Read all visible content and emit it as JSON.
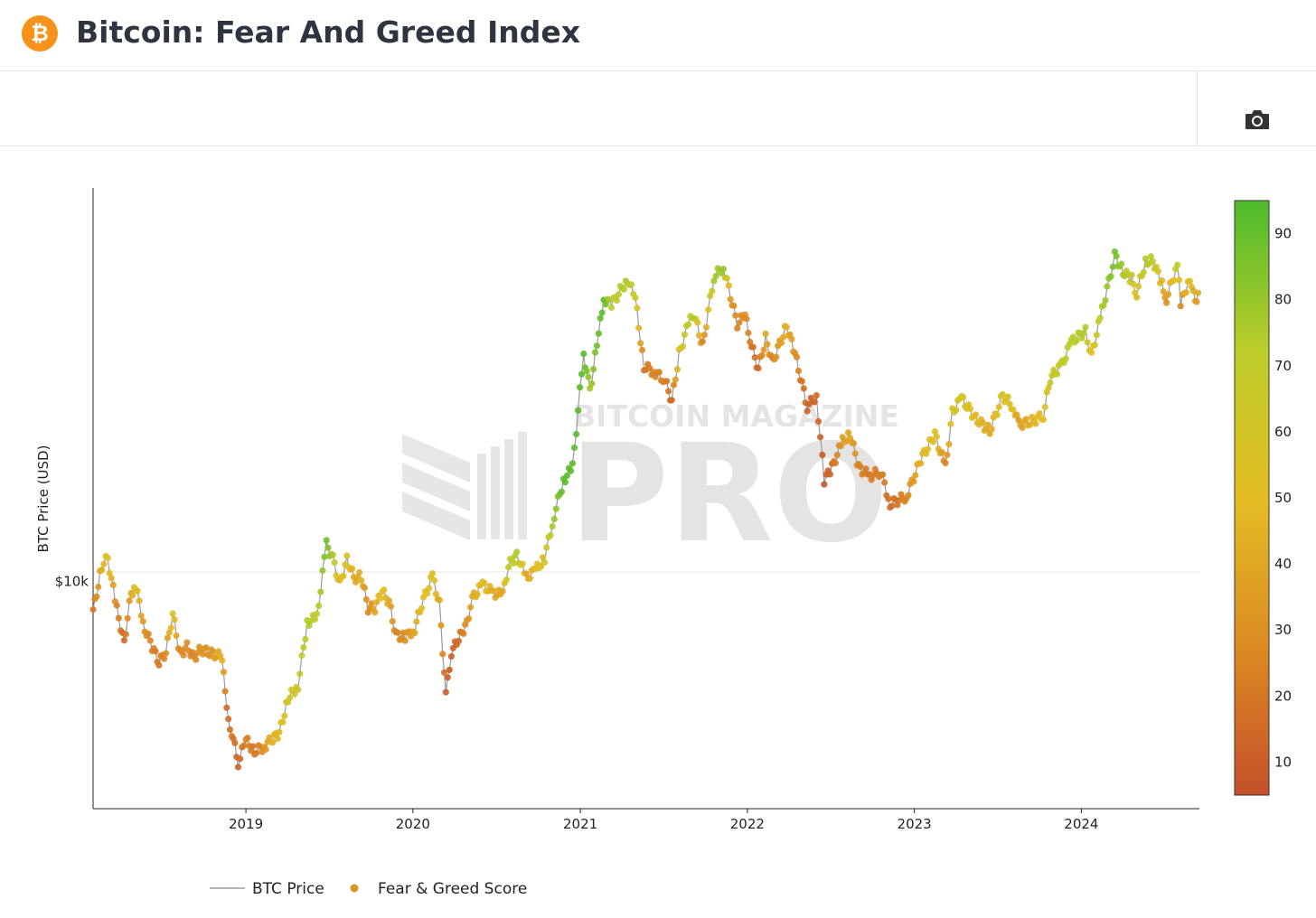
{
  "header": {
    "title": "Bitcoin: Fear And Greed Index",
    "logo_glyph": "₿",
    "logo_color": "#f7931a"
  },
  "toolbar": {
    "camera_icon": "camera-icon"
  },
  "watermark": {
    "line1": "BITCOIN MAGAZINE",
    "line2": "PRO"
  },
  "chart_data": {
    "type": "scatter",
    "title": "Bitcoin: Fear And Greed Index",
    "ylabel": "BTC Price (USD)",
    "xlabel": "",
    "yscale": "log",
    "y_tick_labels": [
      {
        "value": 10000,
        "label": "$10k"
      }
    ],
    "x_tick_labels": [
      "2019",
      "2020",
      "2021",
      "2022",
      "2023",
      "2024"
    ],
    "xlim": [
      "2018-02-01",
      "2024-09-15"
    ],
    "ylim": [
      2500,
      110000
    ],
    "grid": true,
    "legend_position": "bottom",
    "legend": [
      "BTC Price",
      "Fear & Greed Score"
    ],
    "colorbar": {
      "min": 5,
      "max": 95,
      "ticks": [
        10,
        20,
        30,
        40,
        50,
        60,
        70,
        80,
        90
      ],
      "colors": [
        "#c4502a",
        "#dc8a22",
        "#e3bd24",
        "#bccc2a",
        "#4cba2c"
      ]
    },
    "series": [
      {
        "name": "BTC Price",
        "type": "line",
        "color": "#9a9a9a"
      },
      {
        "name": "Fear & Greed Score",
        "type": "markers",
        "color": "#d4952a"
      }
    ],
    "points": [
      [
        "2018-02-01",
        8300,
        20
      ],
      [
        "2018-02-20",
        11000,
        42
      ],
      [
        "2018-03-05",
        11500,
        55
      ],
      [
        "2018-03-25",
        8400,
        25
      ],
      [
        "2018-04-10",
        6900,
        15
      ],
      [
        "2018-04-25",
        9300,
        40
      ],
      [
        "2018-05-05",
        9700,
        52
      ],
      [
        "2018-05-25",
        7500,
        30
      ],
      [
        "2018-06-10",
        6700,
        25
      ],
      [
        "2018-06-25",
        6100,
        20
      ],
      [
        "2018-07-10",
        6500,
        30
      ],
      [
        "2018-07-25",
        8200,
        55
      ],
      [
        "2018-08-10",
        6400,
        25
      ],
      [
        "2018-08-25",
        6700,
        30
      ],
      [
        "2018-09-10",
        6300,
        25
      ],
      [
        "2018-09-25",
        6600,
        32
      ],
      [
        "2018-10-10",
        6500,
        30
      ],
      [
        "2018-10-25",
        6400,
        35
      ],
      [
        "2018-11-10",
        6300,
        45
      ],
      [
        "2018-11-20",
        4500,
        15
      ],
      [
        "2018-12-01",
        4000,
        20
      ],
      [
        "2018-12-15",
        3300,
        12
      ],
      [
        "2019-01-01",
        3800,
        25
      ],
      [
        "2019-01-20",
        3550,
        20
      ],
      [
        "2019-02-10",
        3650,
        30
      ],
      [
        "2019-02-25",
        3800,
        45
      ],
      [
        "2019-03-15",
        3950,
        48
      ],
      [
        "2019-04-03",
        4900,
        60
      ],
      [
        "2019-04-25",
        5300,
        65
      ],
      [
        "2019-05-15",
        7800,
        75
      ],
      [
        "2019-06-05",
        8000,
        70
      ],
      [
        "2019-06-26",
        12500,
        88
      ],
      [
        "2019-07-10",
        11500,
        75
      ],
      [
        "2019-07-25",
        9800,
        45
      ],
      [
        "2019-08-10",
        11500,
        58
      ],
      [
        "2019-08-25",
        10200,
        40
      ],
      [
        "2019-09-10",
        10300,
        45
      ],
      [
        "2019-09-25",
        8500,
        25
      ],
      [
        "2019-10-10",
        8500,
        40
      ],
      [
        "2019-10-26",
        9400,
        55
      ],
      [
        "2019-11-10",
        8800,
        40
      ],
      [
        "2019-11-25",
        7200,
        25
      ],
      [
        "2019-12-15",
        7100,
        30
      ],
      [
        "2020-01-05",
        7500,
        40
      ],
      [
        "2020-01-20",
        8700,
        50
      ],
      [
        "2020-02-13",
        10300,
        55
      ],
      [
        "2020-02-28",
        8700,
        40
      ],
      [
        "2020-03-13",
        5000,
        10
      ],
      [
        "2020-03-25",
        6500,
        12
      ],
      [
        "2020-04-10",
        7000,
        15
      ],
      [
        "2020-04-28",
        7800,
        30
      ],
      [
        "2020-05-10",
        9000,
        40
      ],
      [
        "2020-06-01",
        9800,
        50
      ],
      [
        "2020-06-25",
        9300,
        42
      ],
      [
        "2020-07-15",
        9200,
        40
      ],
      [
        "2020-07-28",
        11000,
        68
      ],
      [
        "2020-08-15",
        11800,
        75
      ],
      [
        "2020-09-05",
        10200,
        40
      ],
      [
        "2020-09-25",
        10700,
        50
      ],
      [
        "2020-10-15",
        11500,
        60
      ],
      [
        "2020-11-05",
        15000,
        80
      ],
      [
        "2020-11-25",
        18500,
        92
      ],
      [
        "2020-12-15",
        20000,
        92
      ],
      [
        "2021-01-08",
        40000,
        93
      ],
      [
        "2021-01-22",
        32000,
        78
      ],
      [
        "2021-02-10",
        45000,
        90
      ],
      [
        "2021-02-21",
        56000,
        92
      ],
      [
        "2021-03-10",
        54000,
        72
      ],
      [
        "2021-04-14",
        63000,
        75
      ],
      [
        "2021-05-01",
        56000,
        65
      ],
      [
        "2021-05-20",
        37000,
        20
      ],
      [
        "2021-06-10",
        36000,
        25
      ],
      [
        "2021-07-05",
        34000,
        25
      ],
      [
        "2021-07-20",
        30000,
        15
      ],
      [
        "2021-08-05",
        40000,
        55
      ],
      [
        "2021-08-25",
        48000,
        72
      ],
      [
        "2021-09-07",
        51000,
        75
      ],
      [
        "2021-09-25",
        42000,
        25
      ],
      [
        "2021-10-20",
        64000,
        78
      ],
      [
        "2021-11-10",
        68000,
        80
      ],
      [
        "2021-11-25",
        57000,
        35
      ],
      [
        "2021-12-10",
        48000,
        25
      ],
      [
        "2021-12-27",
        50500,
        30
      ],
      [
        "2022-01-10",
        42000,
        20
      ],
      [
        "2022-01-25",
        36500,
        15
      ],
      [
        "2022-02-10",
        44000,
        40
      ],
      [
        "2022-02-25",
        38000,
        25
      ],
      [
        "2022-03-28",
        47500,
        45
      ],
      [
        "2022-04-15",
        40000,
        30
      ],
      [
        "2022-05-12",
        29000,
        12
      ],
      [
        "2022-06-01",
        31000,
        15
      ],
      [
        "2022-06-18",
        18500,
        8
      ],
      [
        "2022-07-05",
        20000,
        15
      ],
      [
        "2022-07-28",
        23500,
        35
      ],
      [
        "2022-08-14",
        24500,
        40
      ],
      [
        "2022-09-01",
        20000,
        25
      ],
      [
        "2022-09-25",
        19000,
        20
      ],
      [
        "2022-10-20",
        19500,
        25
      ],
      [
        "2022-11-09",
        16000,
        15
      ],
      [
        "2022-12-15",
        16800,
        25
      ],
      [
        "2023-01-15",
        21000,
        45
      ],
      [
        "2023-02-15",
        24500,
        55
      ],
      [
        "2023-03-10",
        20000,
        25
      ],
      [
        "2023-03-25",
        28000,
        58
      ],
      [
        "2023-04-14",
        30500,
        62
      ],
      [
        "2023-05-15",
        27000,
        48
      ],
      [
        "2023-06-15",
        25000,
        40
      ],
      [
        "2023-07-13",
        31000,
        60
      ],
      [
        "2023-08-05",
        29000,
        50
      ],
      [
        "2023-08-17",
        26000,
        35
      ],
      [
        "2023-09-15",
        26500,
        45
      ],
      [
        "2023-10-10",
        27500,
        50
      ],
      [
        "2023-10-25",
        34500,
        65
      ],
      [
        "2023-11-20",
        37500,
        70
      ],
      [
        "2023-12-10",
        43000,
        72
      ],
      [
        "2024-01-10",
        46000,
        75
      ],
      [
        "2024-01-23",
        39500,
        50
      ],
      [
        "2024-02-15",
        52000,
        75
      ],
      [
        "2024-03-01",
        62000,
        82
      ],
      [
        "2024-03-14",
        73000,
        88
      ],
      [
        "2024-04-01",
        66000,
        78
      ],
      [
        "2024-04-20",
        63000,
        65
      ],
      [
        "2024-05-01",
        58000,
        55
      ],
      [
        "2024-05-20",
        70000,
        75
      ],
      [
        "2024-06-05",
        71000,
        72
      ],
      [
        "2024-06-25",
        61000,
        45
      ],
      [
        "2024-07-05",
        56000,
        30
      ],
      [
        "2024-07-29",
        69000,
        70
      ],
      [
        "2024-08-05",
        54000,
        28
      ],
      [
        "2024-08-25",
        64000,
        55
      ],
      [
        "2024-09-06",
        54000,
        35
      ],
      [
        "2024-09-12",
        58000,
        40
      ]
    ]
  }
}
